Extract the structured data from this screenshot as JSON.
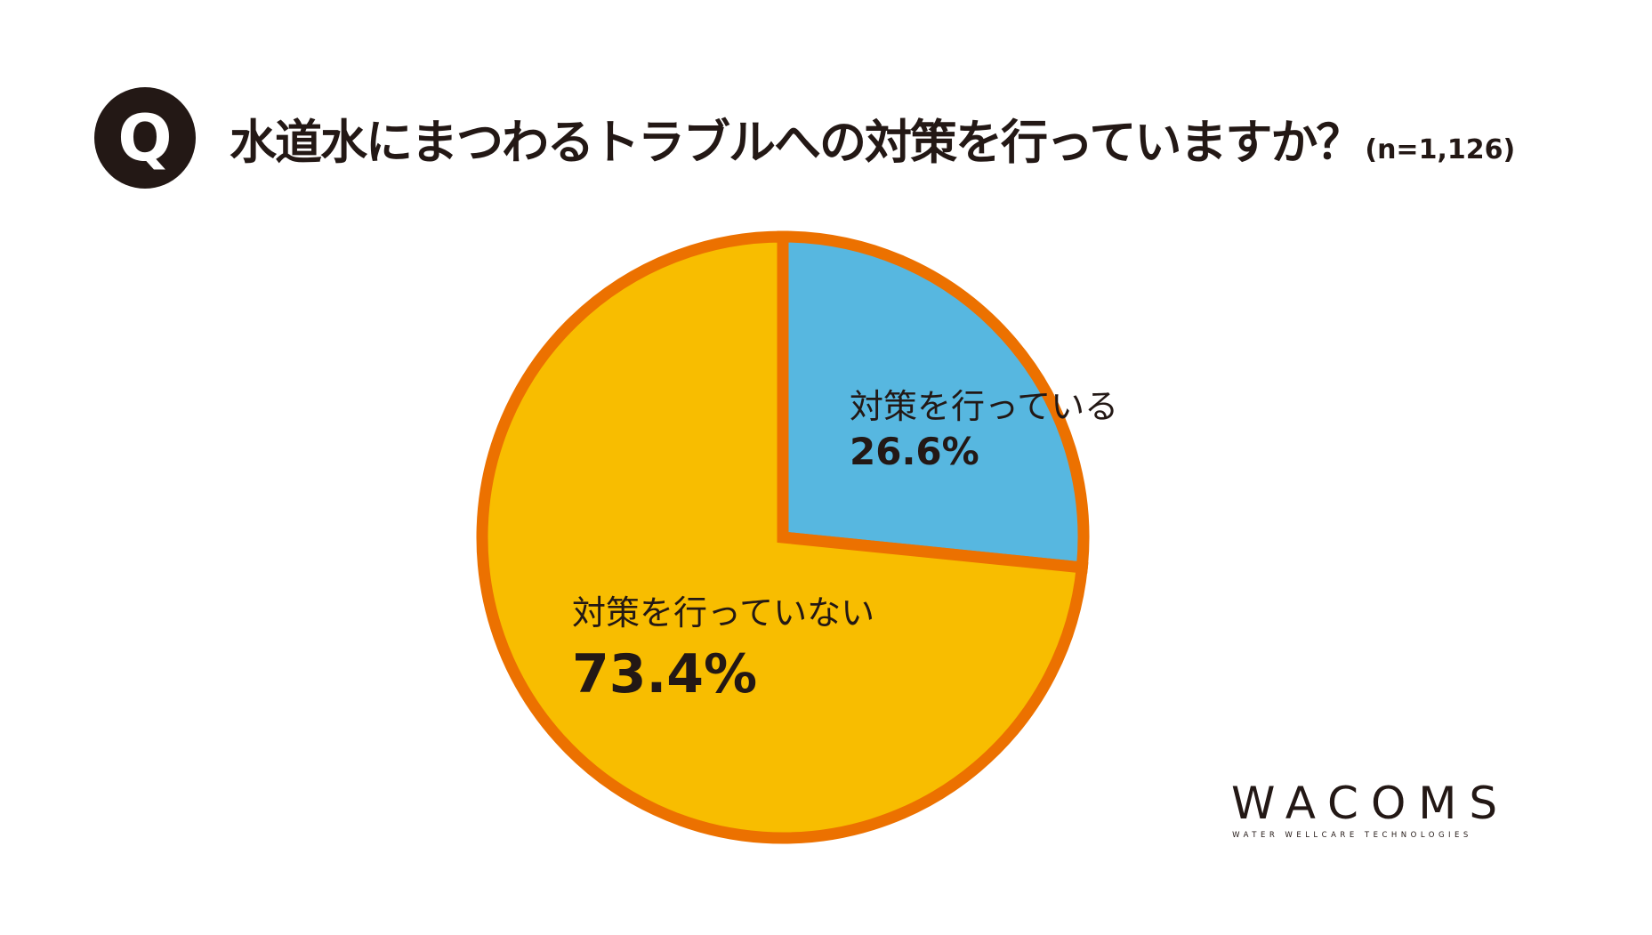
{
  "header": {
    "badge": "Q",
    "title": "水道水にまつわるトラブルへの対策を行っていますか？",
    "sample_size": "(n=1,126)"
  },
  "chart_data": {
    "type": "pie",
    "categories": [
      "対策を行っている",
      "対策を行っていない"
    ],
    "values": [
      26.6,
      73.4
    ],
    "value_labels": [
      "26.6%",
      "73.4%"
    ],
    "start_angle": "12 o'clock",
    "direction": "clockwise",
    "colors": [
      "#57B7E0",
      "#F8BD00"
    ],
    "border_color": "#EC7100"
  },
  "logo": {
    "main": "WACOMS",
    "sub": "WATER WELLCARE TECHNOLOGIES"
  },
  "colors": {
    "text": "#231815",
    "background": "#FFFFFF"
  }
}
